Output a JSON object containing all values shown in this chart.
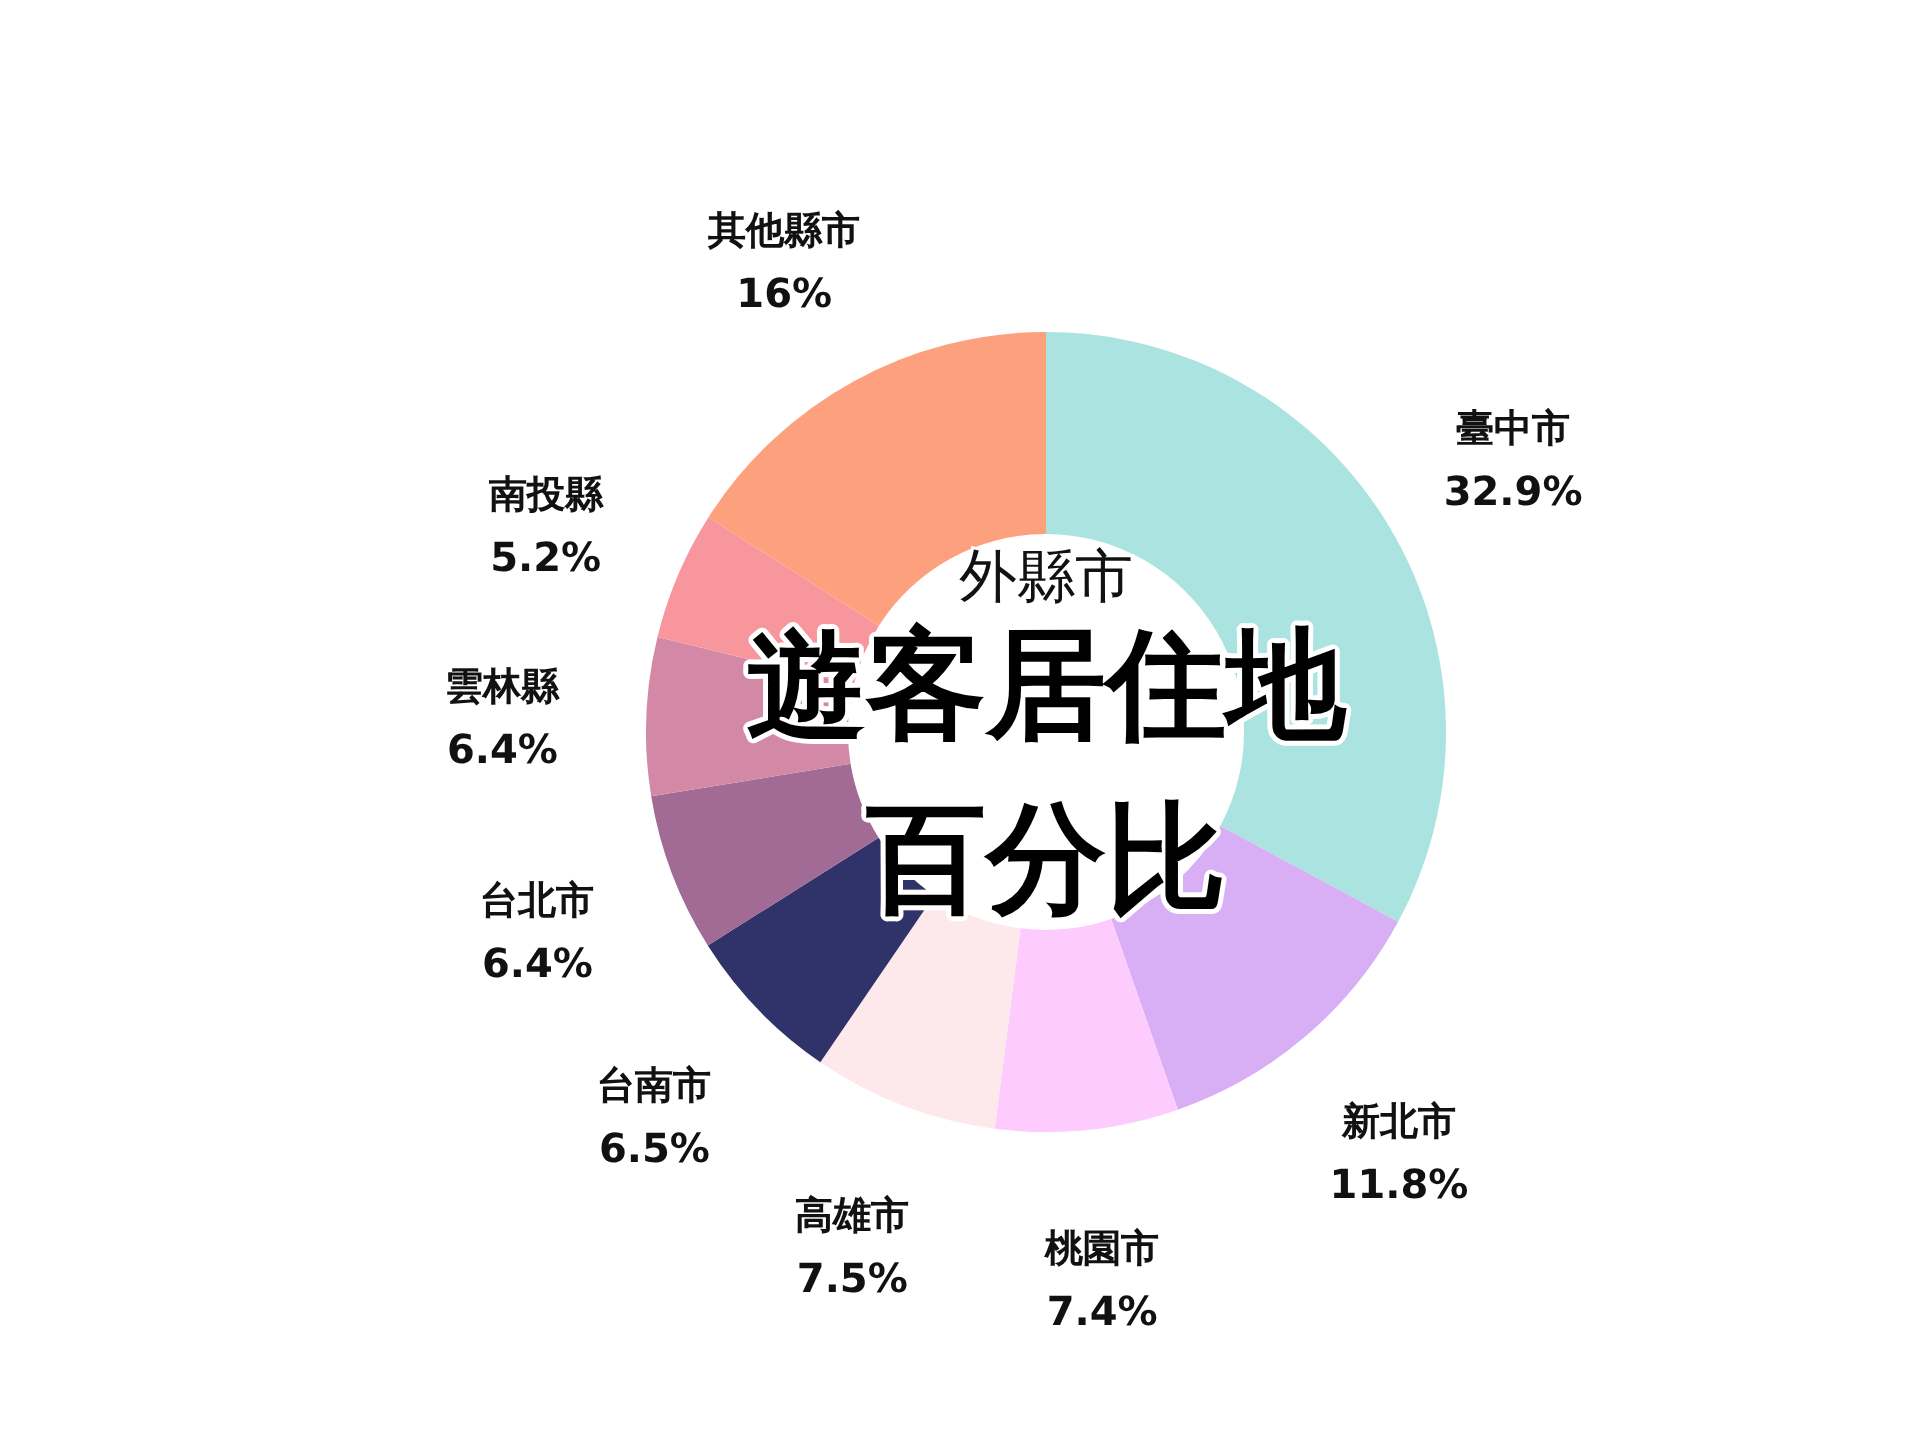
{
  "chart_data": {
    "type": "donut",
    "title": "遊客居住地百分比",
    "subtitle": "外縣市",
    "categories": [
      "臺中市",
      "新北市",
      "桃園市",
      "高雄市",
      "台南市",
      "台北市",
      "雲林縣",
      "南投縣",
      "其他縣市"
    ],
    "values": [
      32.9,
      11.8,
      7.4,
      7.5,
      6.5,
      6.4,
      6.4,
      5.2,
      16
    ],
    "value_labels": [
      "32.9%",
      "11.8%",
      "7.4%",
      "7.5%",
      "6.5%",
      "6.4%",
      "6.4%",
      "5.2%",
      "16%"
    ],
    "colors": [
      "#abe3e1",
      "#d8aef4",
      "#fdcbfd",
      "#fde9ec",
      "#2f3369",
      "#a26b95",
      "#d389a5",
      "#f8969e",
      "#fda07e"
    ]
  }
}
